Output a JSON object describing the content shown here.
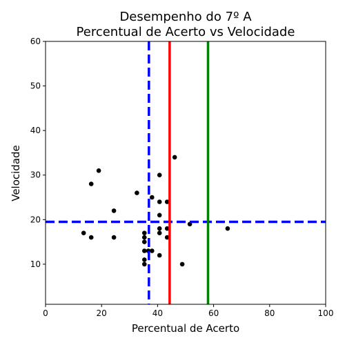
{
  "chart_data": {
    "type": "scatter",
    "title_lines": [
      "Desempenho do 7º A",
      "Percentual de Acerto vs Velocidade"
    ],
    "xlabel": "Percentual de Acerto",
    "ylabel": "Velocidade",
    "xlim": [
      0,
      100
    ],
    "ylim": [
      1,
      60
    ],
    "xticks": [
      0,
      20,
      40,
      60,
      80,
      100
    ],
    "yticks": [
      10,
      20,
      30,
      40,
      50,
      60
    ],
    "grid": false,
    "point_color": "#000000",
    "points": [
      {
        "x": 13.6,
        "y": 17
      },
      {
        "x": 16.3,
        "y": 28
      },
      {
        "x": 16.3,
        "y": 16
      },
      {
        "x": 19.0,
        "y": 31
      },
      {
        "x": 24.4,
        "y": 22
      },
      {
        "x": 24.4,
        "y": 16
      },
      {
        "x": 32.6,
        "y": 26
      },
      {
        "x": 35.3,
        "y": 17
      },
      {
        "x": 35.3,
        "y": 16
      },
      {
        "x": 35.3,
        "y": 15
      },
      {
        "x": 35.3,
        "y": 13
      },
      {
        "x": 35.3,
        "y": 11
      },
      {
        "x": 35.3,
        "y": 10
      },
      {
        "x": 36.7,
        "y": 13
      },
      {
        "x": 38.0,
        "y": 25
      },
      {
        "x": 38.0,
        "y": 13
      },
      {
        "x": 40.7,
        "y": 30
      },
      {
        "x": 40.7,
        "y": 24
      },
      {
        "x": 40.7,
        "y": 21
      },
      {
        "x": 40.7,
        "y": 18
      },
      {
        "x": 40.7,
        "y": 17
      },
      {
        "x": 40.7,
        "y": 12
      },
      {
        "x": 43.4,
        "y": 24
      },
      {
        "x": 43.4,
        "y": 18
      },
      {
        "x": 43.4,
        "y": 16
      },
      {
        "x": 46.1,
        "y": 34
      },
      {
        "x": 48.8,
        "y": 10
      },
      {
        "x": 51.5,
        "y": 19
      },
      {
        "x": 65.0,
        "y": 18
      }
    ],
    "reference_lines": [
      {
        "orientation": "vertical",
        "value": 36.9,
        "color": "#0000ff",
        "style": "dashed"
      },
      {
        "orientation": "horizontal",
        "value": 19.5,
        "color": "#0000ff",
        "style": "dashed"
      },
      {
        "orientation": "vertical",
        "value": 44.3,
        "color": "#ff0000",
        "style": "solid"
      },
      {
        "orientation": "vertical",
        "value": 58.0,
        "color": "#008000",
        "style": "solid"
      }
    ]
  }
}
